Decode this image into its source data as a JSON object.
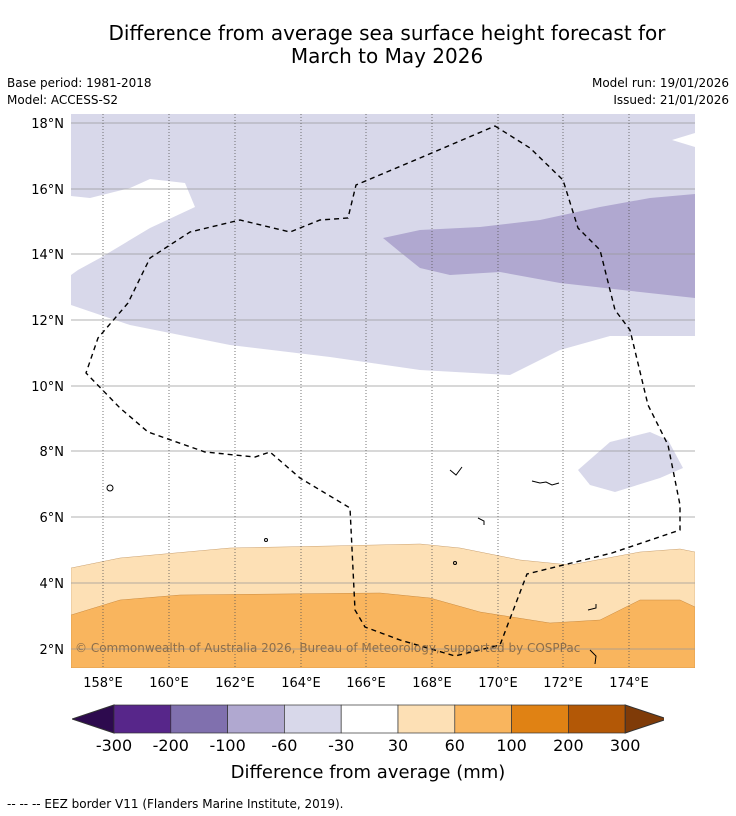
{
  "title": "Difference from average sea surface height forecast for March to May 2026",
  "title_line1": "Difference from average sea surface height forecast for",
  "title_line2": "March to May 2026",
  "base_period": "Base period: 1981-2018",
  "model": "Model: ACCESS-S2",
  "model_run": "Model run: 19/01/2026",
  "issued": "Issued: 21/01/2026",
  "map": {
    "lat_labels": [
      "18°N",
      "16°N",
      "14°N",
      "12°N",
      "10°N",
      "8°N",
      "6°N",
      "4°N",
      "2°N"
    ],
    "lon_labels": [
      "158°E",
      "160°E",
      "162°E",
      "164°E",
      "166°E",
      "168°E",
      "170°E",
      "172°E",
      "174°E"
    ],
    "copyright": "© Commonwealth of Australia 2026, Bureau of Meteorology, supported by COSPPac"
  },
  "colorbar": {
    "ticks": [
      "-300",
      "-200",
      "-100",
      "-60",
      "-30",
      "30",
      "60",
      "100",
      "200",
      "300"
    ],
    "colors": [
      "#2d0a4e",
      "#57268a",
      "#8070ae",
      "#b0a8d0",
      "#d8d8ea",
      "#ffffff",
      "#fde0b5",
      "#f9b55e",
      "#e08214",
      "#b35806",
      "#7f3b08"
    ],
    "label": "Difference from average (mm)"
  },
  "legend": "--  --  -- EEZ border V11 (Flanders Marine Institute, 2019)."
}
